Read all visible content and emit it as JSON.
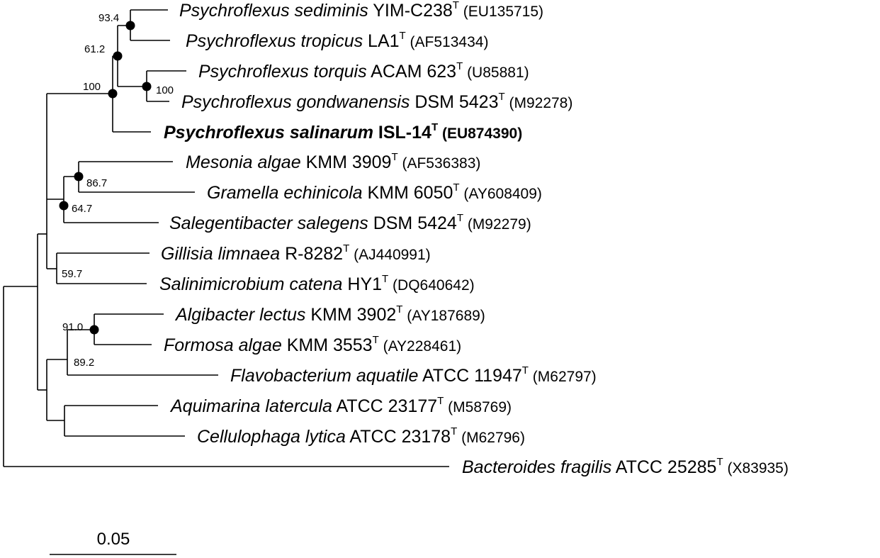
{
  "taxa": [
    {
      "genus": "Psychroflexus",
      "species": "sediminis",
      "strain": "YIM-C238",
      "type_mark": "T",
      "accession": "(EU135715)",
      "bold": false
    },
    {
      "genus": "Psychroflexus",
      "species": "tropicus",
      "strain": "LA1",
      "type_mark": "T",
      "accession": "(AF513434)",
      "bold": false
    },
    {
      "genus": "Psychroflexus",
      "species": "torquis",
      "strain": "ACAM 623",
      "type_mark": "T",
      "accession": "(U85881)",
      "bold": false
    },
    {
      "genus": "Psychroflexus",
      "species": "gondwanensis",
      "strain": "DSM 5423",
      "type_mark": "T",
      "accession": "(M92278)",
      "bold": false
    },
    {
      "genus": "Psychroflexus",
      "species": "salinarum",
      "strain": "ISL-14",
      "type_mark": "T",
      "accession": "(EU874390)",
      "bold": true
    },
    {
      "genus": "Mesonia",
      "species": "algae",
      "strain": "KMM 3909",
      "type_mark": "T",
      "accession": "(AF536383)",
      "bold": false
    },
    {
      "genus": "Gramella",
      "species": "echinicola",
      "strain": "KMM 6050",
      "type_mark": "T",
      "accession": "(AY608409)",
      "bold": false
    },
    {
      "genus": "Salegentibacter",
      "species": "salegens",
      "strain": "DSM 5424",
      "type_mark": "T",
      "accession": "(M92279)",
      "bold": false
    },
    {
      "genus": "Gillisia",
      "species": "limnaea",
      "strain": "R-8282",
      "type_mark": "T",
      "accession": "(AJ440991)",
      "bold": false
    },
    {
      "genus": "Salinimicrobium",
      "species": "catena",
      "strain": "HY1",
      "type_mark": "T",
      "accession": "(DQ640642)",
      "bold": false
    },
    {
      "genus": "Algibacter",
      "species": "lectus",
      "strain": "KMM 3902",
      "type_mark": "T",
      "accession": "(AY187689)",
      "bold": false
    },
    {
      "genus": "Formosa",
      "species": "algae",
      "strain": "KMM 3553",
      "type_mark": "T",
      "accession": "(AY228461)",
      "bold": false
    },
    {
      "genus": "Flavobacterium",
      "species": "aquatile",
      "strain": "ATCC 11947",
      "type_mark": "T",
      "accession": "(M62797)",
      "bold": false
    },
    {
      "genus": "Aquimarina",
      "species": "latercula",
      "strain": "ATCC 23177",
      "type_mark": "T",
      "accession": "(M58769)",
      "bold": false
    },
    {
      "genus": "Cellulophaga",
      "species": "lytica",
      "strain": "ATCC 23178",
      "type_mark": "T",
      "accession": "(M62796)",
      "bold": false
    },
    {
      "genus": "Bacteroides",
      "species": "fragilis",
      "strain": "ATCC 25285",
      "type_mark": "T",
      "accession": "(X83935)",
      "bold": false
    }
  ],
  "bootstrap": [
    "93.4",
    "61.2",
    "100",
    "100",
    "86.7",
    "64.7",
    "59.7",
    "91.0",
    "89.2"
  ],
  "scale_bar": {
    "label": "0.05"
  }
}
